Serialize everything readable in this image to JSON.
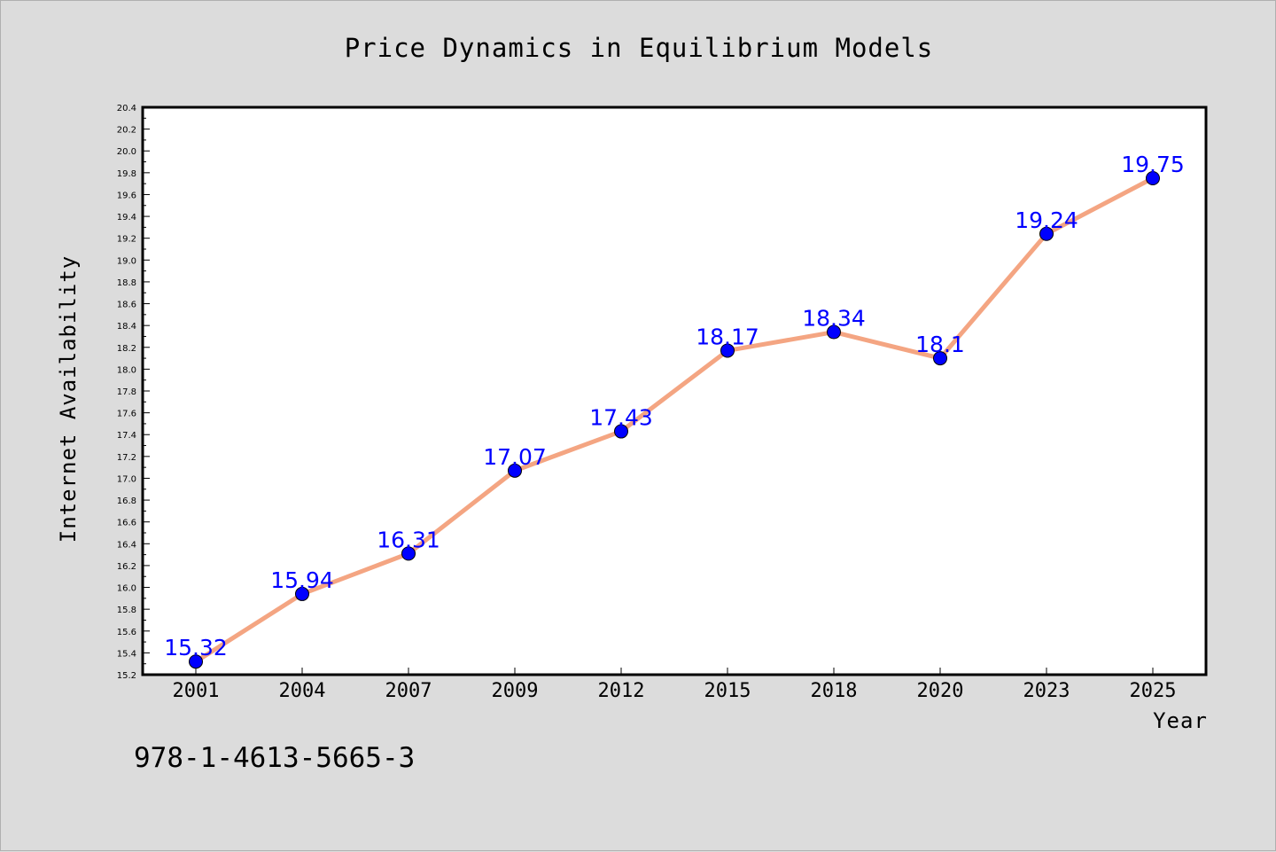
{
  "chart_data": {
    "type": "line",
    "title": "Price Dynamics in Equilibrium Models",
    "xlabel": "Year",
    "ylabel": "Internet Availability",
    "categories": [
      "2001",
      "2004",
      "2007",
      "2009",
      "2012",
      "2015",
      "2018",
      "2020",
      "2023",
      "2025"
    ],
    "series": [
      {
        "values": [
          15.32,
          15.94,
          16.31,
          17.07,
          17.43,
          18.17,
          18.34,
          18.1,
          19.24,
          19.75
        ],
        "labels": [
          "15.32",
          "15.94",
          "16.31",
          "17.07",
          "17.43",
          "18.17",
          "18.34",
          "18.1",
          "19.24",
          "19.75"
        ],
        "line_color": "#f4a582",
        "marker_color": "#0000ff"
      }
    ],
    "ylim": [
      15.2,
      20.4
    ],
    "y_ticks": [
      "15.2",
      "15.4",
      "15.6",
      "15.8",
      "16.0",
      "16.2",
      "16.4",
      "16.6",
      "16.8",
      "17.0",
      "17.2",
      "17.4",
      "17.6",
      "17.8",
      "18.0",
      "18.2",
      "18.4",
      "18.6",
      "18.8",
      "19.0",
      "19.2",
      "19.4",
      "19.6",
      "19.8",
      "20.0",
      "20.2",
      "20.4"
    ],
    "grid": false,
    "legend": "none",
    "background": "#dcdcdc",
    "plot_background": "#ffffff"
  },
  "annotation": {
    "isbn": "978-1-4613-5665-3"
  }
}
